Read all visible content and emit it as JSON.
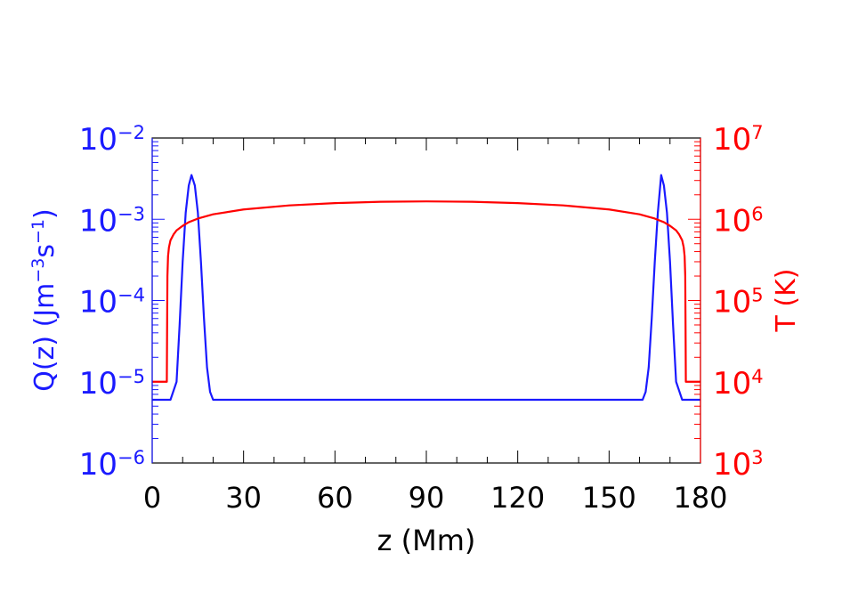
{
  "chart_data": {
    "type": "line",
    "xlabel": "z (Mm)",
    "xlim": [
      0,
      180
    ],
    "x_ticks": [
      "0",
      "30",
      "60",
      "90",
      "120",
      "150",
      "180"
    ],
    "left_axis": {
      "label_main": "Q(z)  (Jm",
      "label_exp1": "−3",
      "label_mid": "s",
      "label_exp2": "−1",
      "label_end": ")",
      "scale": "log",
      "ylim": [
        1e-06,
        0.01
      ],
      "ticks": [
        {
          "value": 1e-06,
          "base": "10",
          "exp": "−6"
        },
        {
          "value": 1e-05,
          "base": "10",
          "exp": "−5"
        },
        {
          "value": 0.0001,
          "base": "10",
          "exp": "−4"
        },
        {
          "value": 0.001,
          "base": "10",
          "exp": "−3"
        },
        {
          "value": 0.01,
          "base": "10",
          "exp": "−2"
        }
      ],
      "color": "#1a1aff"
    },
    "right_axis": {
      "label": "T (K)",
      "scale": "log",
      "ylim": [
        1000.0,
        10000000.0
      ],
      "ticks": [
        {
          "value": 1000.0,
          "base": "10",
          "exp": "3"
        },
        {
          "value": 10000.0,
          "base": "10",
          "exp": "4"
        },
        {
          "value": 100000.0,
          "base": "10",
          "exp": "5"
        },
        {
          "value": 1000000.0,
          "base": "10",
          "exp": "6"
        },
        {
          "value": 10000000.0,
          "base": "10",
          "exp": "7"
        }
      ],
      "color": "#ff0000"
    },
    "series": [
      {
        "axis": "left",
        "color": "#1a1aff",
        "x": [
          0,
          4,
          6,
          8,
          9,
          10,
          11,
          12,
          12.9,
          14,
          15,
          16,
          17,
          18,
          19,
          20,
          22,
          30,
          60,
          90,
          120,
          150,
          158,
          160,
          161,
          162,
          163,
          164,
          165,
          166,
          167.1,
          168,
          169,
          170,
          171,
          172,
          174,
          176,
          180
        ],
        "y": [
          6e-06,
          6e-06,
          6e-06,
          1e-05,
          5e-05,
          0.0003,
          0.0012,
          0.0026,
          0.0035,
          0.0026,
          0.0012,
          0.0003,
          6e-05,
          1.5e-05,
          7.5e-06,
          6e-06,
          6e-06,
          6e-06,
          6e-06,
          6e-06,
          6e-06,
          6e-06,
          6e-06,
          6e-06,
          6e-06,
          7.5e-06,
          1.5e-05,
          6e-05,
          0.0003,
          0.0012,
          0.0035,
          0.0026,
          0.0012,
          0.0003,
          5e-05,
          1e-05,
          6e-06,
          6e-06,
          6e-06
        ]
      },
      {
        "axis": "right",
        "color": "#ff0000",
        "x": [
          0,
          4.8,
          4.9,
          5.0,
          5.2,
          5.5,
          6,
          7,
          8,
          10,
          12,
          15,
          20,
          30,
          45,
          60,
          75,
          90,
          105,
          120,
          135,
          150,
          160,
          165,
          168,
          170,
          172,
          173,
          174,
          174.5,
          174.8,
          175,
          175.1,
          175.2,
          180
        ],
        "y": [
          10000.0,
          10000.0,
          50000.0,
          200000.0,
          350000.0,
          450000.0,
          550000.0,
          650000.0,
          730000.0,
          830000.0,
          920000.0,
          1020000.0,
          1150000.0,
          1320000.0,
          1480000.0,
          1580000.0,
          1640000.0,
          1660000.0,
          1640000.0,
          1580000.0,
          1480000.0,
          1320000.0,
          1150000.0,
          1020000.0,
          920000.0,
          830000.0,
          730000.0,
          650000.0,
          550000.0,
          450000.0,
          350000.0,
          200000.0,
          50000.0,
          10000.0,
          10000.0
        ]
      }
    ]
  }
}
